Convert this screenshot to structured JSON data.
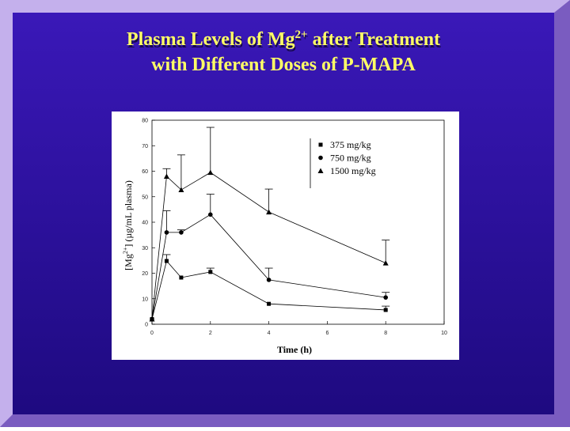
{
  "slide_title": [
    "Plasma Levels of Mg",
    "2+",
    " after Treatment",
    "with Different Doses of P-MAPA"
  ],
  "chart_data": {
    "type": "line",
    "xlabel": "Time (h)",
    "ylabel": [
      "[Mg",
      "2+",
      "] (µg/mL plasma)"
    ],
    "x": [
      0,
      0.5,
      1,
      2,
      4,
      8
    ],
    "series": [
      {
        "name": "375 mg/kg",
        "color": "#000000",
        "marker": "square",
        "values": [
          2,
          24.8,
          18.3,
          20.5,
          8,
          5.6
        ],
        "errors": [
          null,
          2.5,
          null,
          1.5,
          null,
          1.5
        ]
      },
      {
        "name": "750 mg/kg",
        "color": "#000000",
        "marker": "circle",
        "values": [
          2,
          36,
          36,
          43,
          17.4,
          10.5
        ],
        "errors": [
          null,
          8.5,
          1,
          8,
          4.6,
          2
        ]
      },
      {
        "name": "1500 mg/kg",
        "color": "#000000",
        "marker": "triangle",
        "values": [
          2,
          58,
          52.7,
          59.5,
          44,
          24
        ],
        "errors": [
          null,
          3,
          13.7,
          17.7,
          9,
          9
        ]
      }
    ],
    "xlim": [
      0,
      10
    ],
    "xticks": [
      0,
      2,
      4,
      6,
      8,
      10
    ],
    "ylim": [
      0,
      80
    ],
    "yticks": [
      0,
      10,
      20,
      30,
      40,
      50,
      60,
      70,
      80
    ],
    "grid": false,
    "legend": "top-right"
  }
}
